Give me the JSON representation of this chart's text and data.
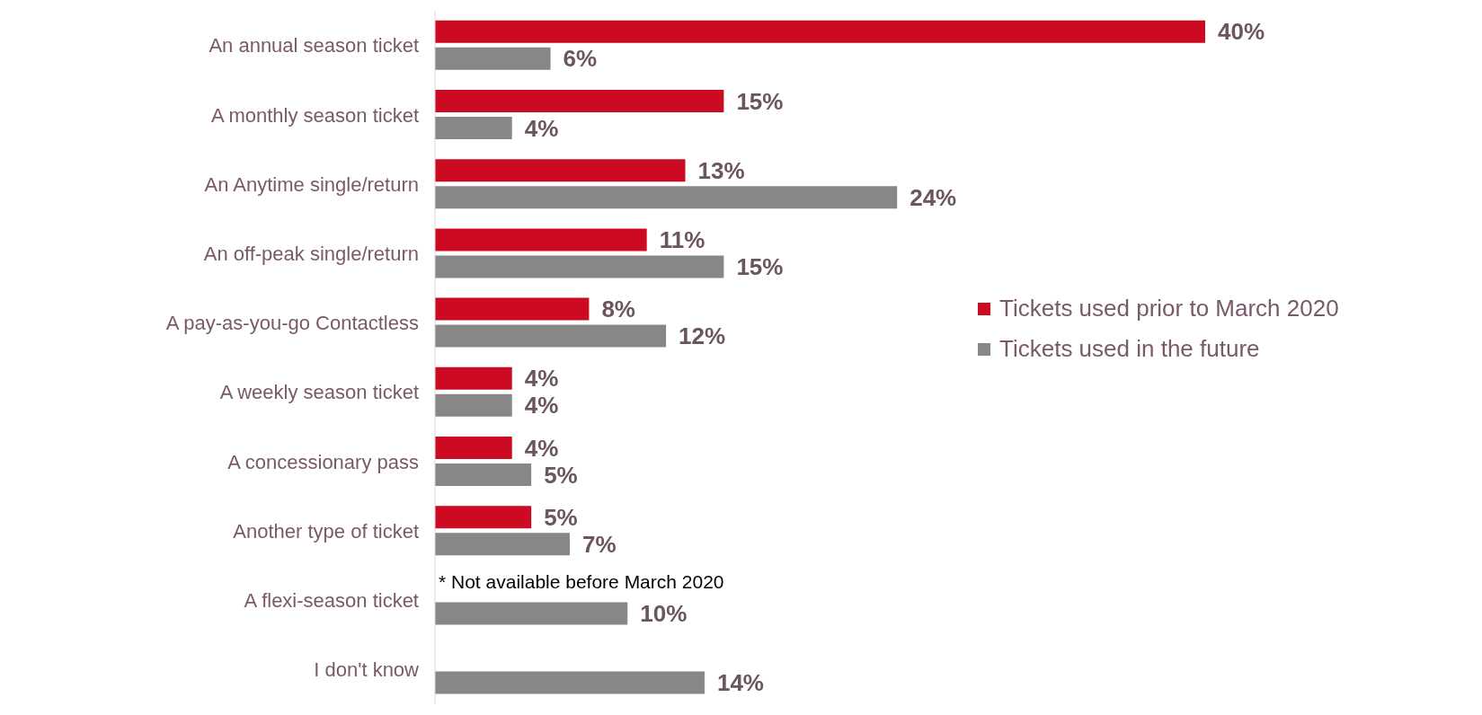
{
  "chart_data": {
    "type": "bar",
    "orientation": "horizontal",
    "legend": "right",
    "tick_labels": "y",
    "categories": [
      "An annual season ticket",
      "A monthly season ticket",
      "An Anytime single/return",
      "An off-peak single/return",
      "A pay-as-you-go Contactless",
      "A weekly season ticket",
      "A concessionary pass",
      "Another type of ticket",
      "A flexi-season ticket",
      "I don't know"
    ],
    "series": [
      {
        "name": "Tickets used prior to March 2020",
        "color": "#cc0a22",
        "values": [
          40,
          15,
          13,
          11,
          8,
          4,
          4,
          5,
          null,
          null
        ],
        "value_labels": [
          "40%",
          "15%",
          "13%",
          "11%",
          "8%",
          "4%",
          "4%",
          "5%",
          null,
          null
        ]
      },
      {
        "name": "Tickets used in the future",
        "color": "#878787",
        "values": [
          6,
          4,
          24,
          15,
          12,
          4,
          5,
          7,
          10,
          14
        ],
        "value_labels": [
          "6%",
          "4%",
          "24%",
          "15%",
          "12%",
          "4%",
          "5%",
          "7%",
          "10%",
          "14%"
        ]
      }
    ],
    "annotations": [
      {
        "text": "* Not available before March 2020",
        "y": "A flexi-season ticket"
      }
    ]
  }
}
